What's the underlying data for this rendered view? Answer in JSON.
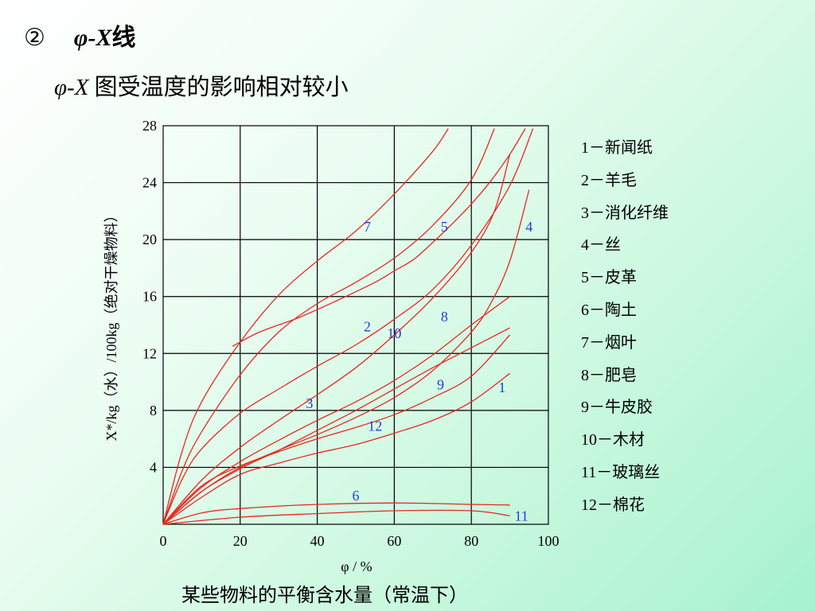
{
  "heading": {
    "marker": "②",
    "title_italic": "φ-X",
    "title_suffix": "线"
  },
  "subheading": {
    "italic": "φ-X",
    "text": " 图受温度的影响相对较小"
  },
  "legend": [
    "1－新闻纸",
    "2－羊毛",
    "3－消化纤维",
    "4－丝",
    "5－皮革",
    "6－陶土",
    "7－烟叶",
    "8－肥皂",
    "9－牛皮胶",
    "10－木材",
    "11－玻璃丝",
    "12－棉花"
  ],
  "caption": "某些物料的平衡含水量（常温下）",
  "colors": {
    "curve": "#e8281e",
    "curve_label": "#1f3fd6",
    "grid": "#000000"
  },
  "chart_data": {
    "type": "line",
    "title": "",
    "xlabel": "φ / %",
    "ylabel": "X*/kg（水）/100kg（绝对干燥物料）",
    "xlim": [
      0,
      100
    ],
    "ylim": [
      0,
      28
    ],
    "x_ticks": [
      0,
      20,
      40,
      60,
      80,
      100
    ],
    "y_ticks": [
      4,
      8,
      12,
      16,
      20,
      24,
      28
    ],
    "grid": true,
    "series": [
      {
        "name": "1",
        "label_at": [
          88,
          9.6
        ],
        "points": [
          [
            0,
            0
          ],
          [
            10,
            1.9
          ],
          [
            20,
            3.5
          ],
          [
            30,
            4.3
          ],
          [
            40,
            5.0
          ],
          [
            50,
            5.6
          ],
          [
            60,
            6.4
          ],
          [
            70,
            7.3
          ],
          [
            80,
            8.6
          ],
          [
            90,
            10.6
          ]
        ]
      },
      {
        "name": "2",
        "label_at": [
          53,
          13.9
        ],
        "points": [
          [
            0,
            0
          ],
          [
            5,
            3.2
          ],
          [
            10,
            5.3
          ],
          [
            20,
            7.8
          ],
          [
            30,
            9.5
          ],
          [
            40,
            11.1
          ],
          [
            50,
            12.6
          ],
          [
            60,
            14.4
          ],
          [
            70,
            16.5
          ],
          [
            80,
            19.6
          ],
          [
            90,
            23.8
          ],
          [
            96,
            27.8
          ]
        ]
      },
      {
        "name": "3",
        "label_at": [
          38,
          8.5
        ],
        "points": [
          [
            0,
            0
          ],
          [
            10,
            2.6
          ],
          [
            20,
            4.4
          ],
          [
            30,
            5.9
          ],
          [
            40,
            7.3
          ],
          [
            50,
            8.6
          ],
          [
            60,
            10.1
          ],
          [
            70,
            11.9
          ],
          [
            80,
            14.0
          ],
          [
            90,
            16.0
          ]
        ]
      },
      {
        "name": "4",
        "label_at": [
          95,
          20.9
        ],
        "points": [
          [
            0,
            0
          ],
          [
            10,
            2.3
          ],
          [
            20,
            4.0
          ],
          [
            30,
            5.2
          ],
          [
            40,
            6.3
          ],
          [
            50,
            7.5
          ],
          [
            60,
            8.9
          ],
          [
            70,
            10.8
          ],
          [
            80,
            13.5
          ],
          [
            85,
            15.5
          ],
          [
            90,
            18.5
          ],
          [
            95,
            23.5
          ]
        ]
      },
      {
        "name": "5",
        "label_at": [
          73,
          20.9
        ],
        "points": [
          [
            0,
            0
          ],
          [
            5,
            3.8
          ],
          [
            10,
            6.5
          ],
          [
            20,
            10.5
          ],
          [
            30,
            13.5
          ],
          [
            40,
            15.5
          ],
          [
            50,
            17.0
          ],
          [
            60,
            18.7
          ],
          [
            70,
            21.0
          ],
          [
            80,
            24.2
          ],
          [
            86,
            27.8
          ]
        ]
      },
      {
        "name": "6",
        "label_at": [
          50,
          2.0
        ],
        "points": [
          [
            0,
            0
          ],
          [
            10,
            0.8
          ],
          [
            20,
            1.1
          ],
          [
            40,
            1.4
          ],
          [
            60,
            1.5
          ],
          [
            80,
            1.4
          ],
          [
            90,
            1.35
          ]
        ]
      },
      {
        "name": "7",
        "label_at": [
          53,
          20.9
        ],
        "points": [
          [
            0,
            0
          ],
          [
            5,
            5.2
          ],
          [
            10,
            8.6
          ],
          [
            20,
            12.8
          ],
          [
            30,
            16.1
          ],
          [
            40,
            18.5
          ],
          [
            50,
            20.6
          ],
          [
            60,
            23.2
          ],
          [
            70,
            26.2
          ],
          [
            74,
            27.8
          ]
        ]
      },
      {
        "name": "8",
        "label_at": [
          73,
          14.6
        ],
        "points": [
          [
            18,
            12.5
          ],
          [
            25,
            13.5
          ],
          [
            35,
            14.5
          ],
          [
            45,
            15.7
          ],
          [
            55,
            17.0
          ],
          [
            60,
            17.8
          ],
          [
            65,
            18.6
          ],
          [
            70,
            19.8
          ],
          [
            75,
            21.1
          ],
          [
            80,
            22.5
          ],
          [
            85,
            24.1
          ],
          [
            90,
            26.0
          ],
          [
            94,
            27.8
          ]
        ]
      },
      {
        "name": "9",
        "label_at": [
          72,
          9.8
        ],
        "points": [
          [
            0,
            0
          ],
          [
            10,
            2.3
          ],
          [
            20,
            3.9
          ],
          [
            30,
            5.2
          ],
          [
            40,
            6.6
          ],
          [
            50,
            8.0
          ],
          [
            60,
            9.5
          ],
          [
            70,
            11.0
          ],
          [
            80,
            12.4
          ],
          [
            90,
            13.8
          ]
        ]
      },
      {
        "name": "10",
        "label_at": [
          60,
          13.4
        ],
        "points": [
          [
            0,
            0
          ],
          [
            10,
            3.1
          ],
          [
            20,
            5.4
          ],
          [
            30,
            7.3
          ],
          [
            40,
            9.1
          ],
          [
            50,
            11.0
          ],
          [
            60,
            13.3
          ],
          [
            70,
            15.9
          ],
          [
            80,
            19.1
          ],
          [
            86,
            22.0
          ],
          [
            90,
            26.0
          ]
        ]
      },
      {
        "name": "11",
        "label_at": [
          93,
          0.6
        ],
        "points": [
          [
            0,
            0
          ],
          [
            20,
            0.5
          ],
          [
            40,
            0.75
          ],
          [
            60,
            0.95
          ],
          [
            80,
            0.95
          ],
          [
            90,
            0.6
          ]
        ]
      },
      {
        "name": "12",
        "label_at": [
          55,
          6.9
        ],
        "points": [
          [
            0,
            0
          ],
          [
            10,
            2.7
          ],
          [
            20,
            4.1
          ],
          [
            30,
            5.1
          ],
          [
            40,
            6.0
          ],
          [
            50,
            6.8
          ],
          [
            60,
            7.7
          ],
          [
            70,
            8.9
          ],
          [
            80,
            10.4
          ],
          [
            90,
            13.3
          ]
        ]
      }
    ]
  }
}
